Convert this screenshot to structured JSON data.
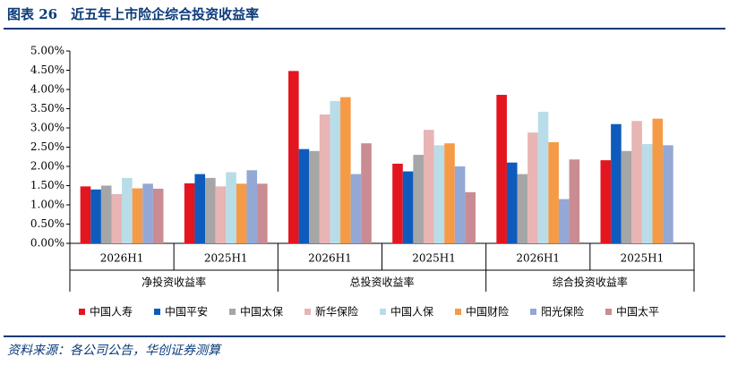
{
  "chart_data": {
    "type": "bar",
    "title": "图表 26　近五年上市险企综合投资收益率",
    "source": "资料来源：各公司公告，华创证券测算",
    "categories": [
      "2026H1",
      "2025H1",
      "2026H1",
      "2025H1",
      "2026H1",
      "2025H1"
    ],
    "category_groups": [
      "净投资收益率",
      "总投资收益率",
      "综合投资收益率"
    ],
    "series": [
      {
        "name": "中国人寿",
        "color": "#e3161f",
        "values": [
          1.48,
          1.56,
          4.48,
          2.07,
          3.86,
          2.16
        ]
      },
      {
        "name": "中国平安",
        "color": "#0e5bbd",
        "values": [
          1.4,
          1.8,
          2.45,
          1.87,
          2.1,
          3.1
        ]
      },
      {
        "name": "中国太保",
        "color": "#a6a6a6",
        "values": [
          1.5,
          1.7,
          2.4,
          2.3,
          1.8,
          2.4
        ]
      },
      {
        "name": "新华保险",
        "color": "#e8b4b4",
        "values": [
          1.28,
          1.48,
          3.35,
          2.95,
          2.88,
          3.18
        ]
      },
      {
        "name": "中国人保",
        "color": "#b8dde8",
        "values": [
          1.7,
          1.85,
          3.7,
          2.55,
          3.42,
          2.58
        ]
      },
      {
        "name": "中国财险",
        "color": "#f59b47",
        "values": [
          1.43,
          1.55,
          3.8,
          2.6,
          2.63,
          3.24
        ]
      },
      {
        "name": "阳光保险",
        "color": "#94a8d6",
        "values": [
          1.55,
          1.9,
          1.8,
          2.0,
          1.15,
          2.55
        ]
      },
      {
        "name": "中国太平",
        "color": "#c98c92",
        "values": [
          1.42,
          1.55,
          2.6,
          1.33,
          2.18,
          null
        ]
      }
    ],
    "ylim": [
      0,
      5
    ],
    "yticks": [
      {
        "value": 0,
        "label": "0.00%"
      },
      {
        "value": 0.5,
        "label": "0.50%"
      },
      {
        "value": 1,
        "label": "1.00%"
      },
      {
        "value": 1.5,
        "label": "1.50%"
      },
      {
        "value": 2,
        "label": "2.00%"
      },
      {
        "value": 2.5,
        "label": "2.50%"
      },
      {
        "value": 3,
        "label": "3.00%"
      },
      {
        "value": 3.5,
        "label": "3.50%"
      },
      {
        "value": 4,
        "label": "4.00%"
      },
      {
        "value": 4.5,
        "label": "4.50%"
      },
      {
        "value": 5,
        "label": "5.00%"
      }
    ],
    "grid": false
  }
}
